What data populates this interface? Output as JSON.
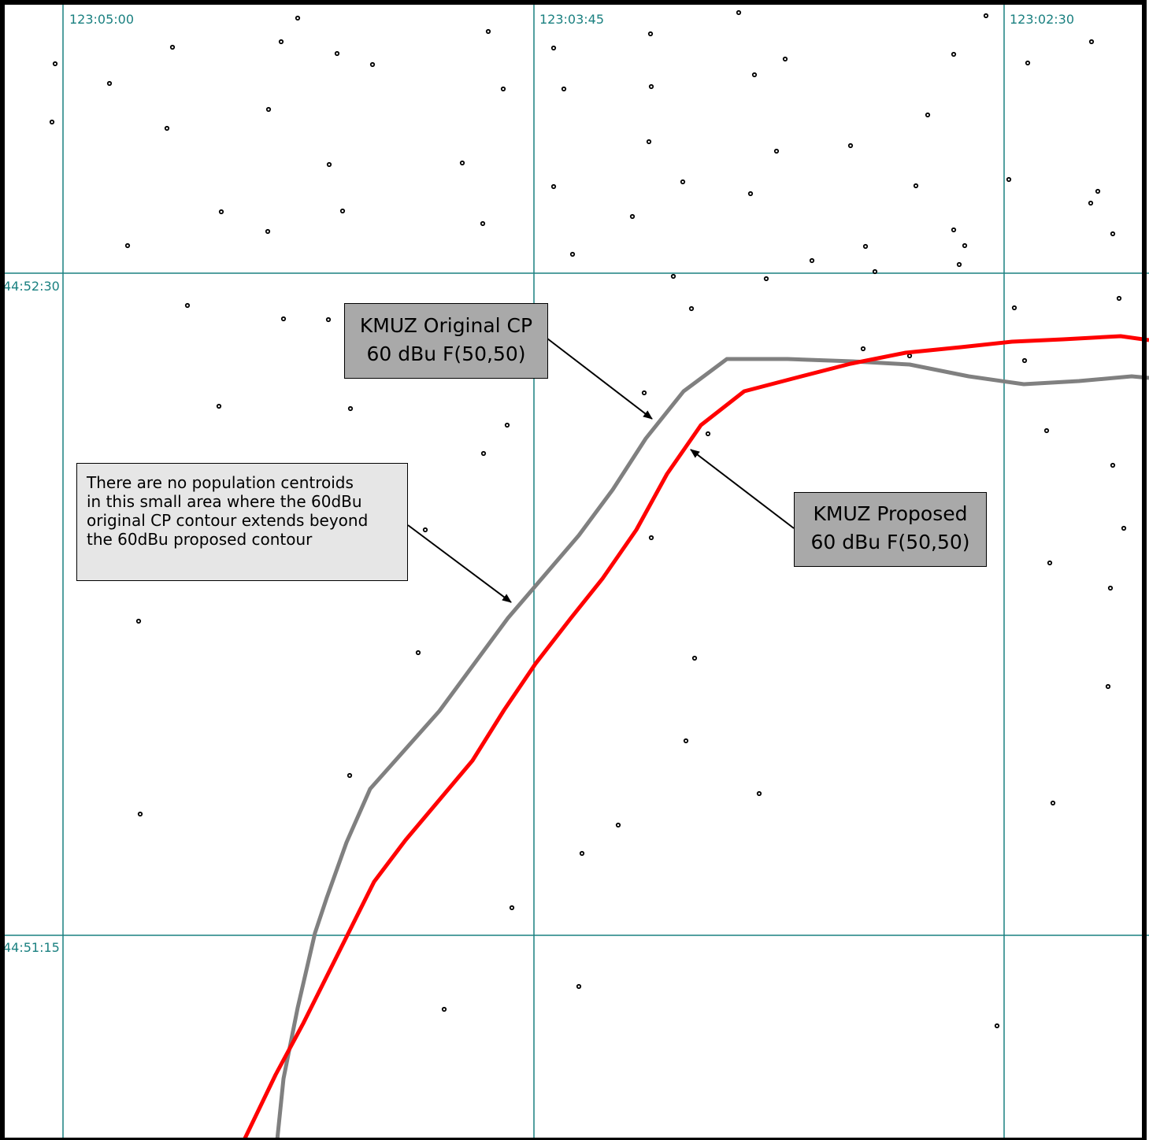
{
  "map": {
    "longitude_labels": [
      "123:05:00",
      "123:03:45",
      "123:02:30"
    ],
    "latitude_labels": [
      "44:52:30",
      "44:51:15"
    ],
    "colors": {
      "grid": "#1a8080",
      "original_contour": "#808080",
      "proposed_contour": "#ff0000",
      "centroid": "#000000",
      "frame": "#000000"
    }
  },
  "annotations": {
    "original_cp": {
      "line1": "KMUZ Original CP",
      "line2": "60 dBu F(50,50)"
    },
    "proposed": {
      "line1": "KMUZ Proposed",
      "line2": "60 dBu F(50,50)"
    },
    "note": {
      "lines": [
        "There are no population centroids",
        "in this small area where the 60dBu",
        "original CP contour extends beyond",
        "the 60dBu proposed contour"
      ]
    }
  }
}
